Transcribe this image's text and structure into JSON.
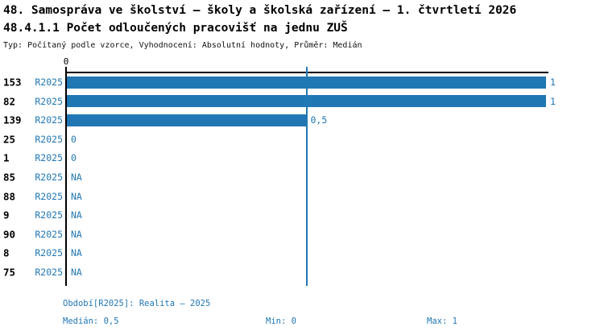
{
  "header": {
    "title_line1": "48. Samospráva ve školství – školy a školská zařízení – 1. čtvrtletí 2026",
    "title_line2": "48.4.1.1 Počet odloučených pracovišť na jednu ZUŠ",
    "subtitle": "Typ: Počítaný podle vzorce, Vyhodnocení: Absolutní hodnoty, Průměr: Medián"
  },
  "chart_data": {
    "type": "bar",
    "orientation": "horizontal",
    "title": "48.4.1.1 Počet odloučených pracovišť na jednu ZUŠ",
    "categories": [
      "153",
      "82",
      "139",
      "25",
      "1",
      "85",
      "88",
      "9",
      "90",
      "8",
      "75"
    ],
    "series": [
      {
        "name": "R2025",
        "values": [
          1,
          1,
          0.5,
          0,
          0,
          null,
          null,
          null,
          null,
          null,
          null
        ],
        "value_labels": [
          "1",
          "1",
          "0,5",
          "0",
          "0",
          "NA",
          "NA",
          "NA",
          "NA",
          "NA",
          "NA"
        ]
      }
    ],
    "xlim": [
      0,
      1
    ],
    "x_tick_labels_shown": [
      "0"
    ],
    "axis": {
      "top_tick_label": "0"
    },
    "median_line": 0.5,
    "grid": false,
    "legend_position": "none"
  },
  "footer": {
    "period": "Období[R2025]: Realita – 2025",
    "median": "Medián: 0,5",
    "min": "Min: 0",
    "max": "Max: 1"
  },
  "colors": {
    "bar": "#2077b4",
    "blue_text": "#2077b4",
    "axis": "#000000",
    "background": "#ffffff"
  }
}
